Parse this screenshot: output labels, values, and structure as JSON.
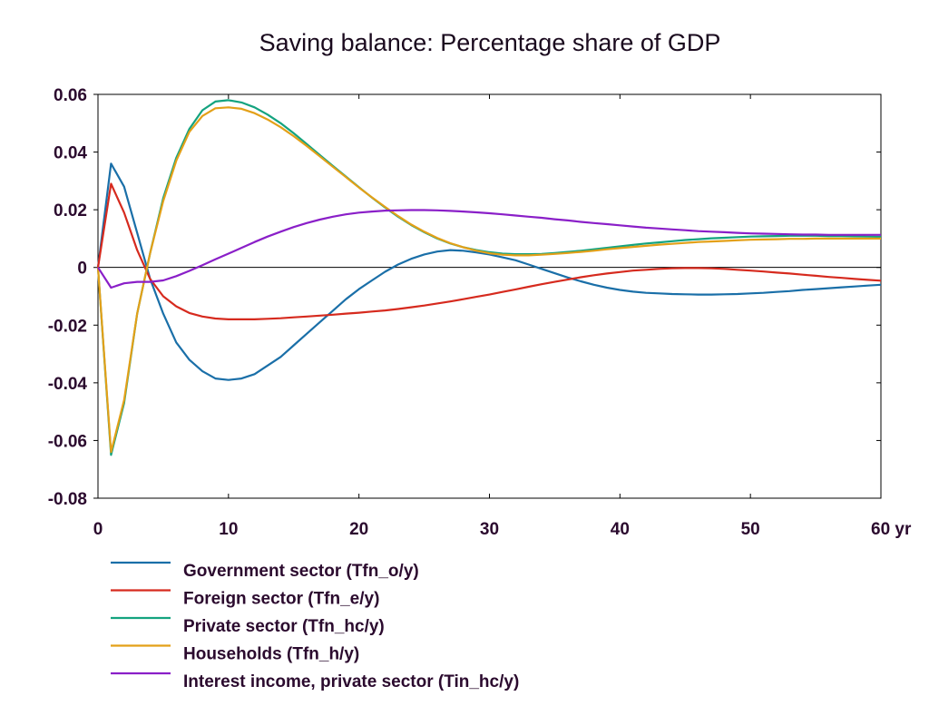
{
  "chart_data": {
    "type": "line",
    "title": "Saving balance: Percentage share of GDP",
    "xlabel": "",
    "ylabel": "",
    "xlim": [
      0,
      60
    ],
    "ylim": [
      -0.08,
      0.06
    ],
    "x_ticks": [
      0,
      10,
      20,
      30,
      40,
      50,
      60
    ],
    "x_tick_labels": [
      "0",
      "10",
      "20",
      "30",
      "40",
      "50",
      "60 yr"
    ],
    "y_ticks": [
      -0.08,
      -0.06,
      -0.04,
      -0.02,
      0,
      0.02,
      0.04,
      0.06
    ],
    "y_tick_labels": [
      "-0.08",
      "-0.06",
      "-0.04",
      "-0.02",
      "0",
      "0.02",
      "0.04",
      "0.06"
    ],
    "grid": false,
    "zero_line": true,
    "legend_position": "bottom",
    "x": [
      0,
      1,
      2,
      3,
      4,
      5,
      6,
      7,
      8,
      9,
      10,
      11,
      12,
      13,
      14,
      15,
      16,
      17,
      18,
      19,
      20,
      21,
      22,
      23,
      24,
      25,
      26,
      27,
      28,
      29,
      30,
      31,
      32,
      33,
      34,
      35,
      36,
      37,
      38,
      39,
      40,
      41,
      42,
      43,
      44,
      45,
      46,
      47,
      48,
      49,
      50,
      51,
      52,
      53,
      54,
      55,
      56,
      57,
      58,
      59,
      60
    ],
    "series": [
      {
        "name": "Government sector (Tfn_o/y)",
        "color": "#1a6fa8",
        "values": [
          0,
          0.036,
          0.028,
          0.012,
          -0.004,
          -0.016,
          -0.026,
          -0.032,
          -0.036,
          -0.0385,
          -0.039,
          -0.0385,
          -0.037,
          -0.034,
          -0.031,
          -0.027,
          -0.023,
          -0.019,
          -0.015,
          -0.011,
          -0.0075,
          -0.0045,
          -0.0015,
          0.001,
          0.003,
          0.0045,
          0.0055,
          0.006,
          0.0058,
          0.0052,
          0.0045,
          0.0035,
          0.0025,
          0.001,
          -0.0005,
          -0.002,
          -0.0035,
          -0.0048,
          -0.006,
          -0.007,
          -0.0078,
          -0.0084,
          -0.0088,
          -0.009,
          -0.0092,
          -0.0093,
          -0.0094,
          -0.0094,
          -0.0093,
          -0.0092,
          -0.009,
          -0.0088,
          -0.0085,
          -0.0082,
          -0.0078,
          -0.0075,
          -0.0072,
          -0.0069,
          -0.0066,
          -0.0063,
          -0.006
        ]
      },
      {
        "name": "Foreign sector (Tfn_e/y)",
        "color": "#d62a1e",
        "values": [
          0,
          0.029,
          0.019,
          0.006,
          -0.004,
          -0.01,
          -0.0135,
          -0.0158,
          -0.017,
          -0.0177,
          -0.018,
          -0.018,
          -0.018,
          -0.0178,
          -0.0176,
          -0.0173,
          -0.017,
          -0.0167,
          -0.0164,
          -0.016,
          -0.0157,
          -0.0153,
          -0.0149,
          -0.0144,
          -0.0138,
          -0.0132,
          -0.0125,
          -0.0118,
          -0.011,
          -0.0102,
          -0.0094,
          -0.0085,
          -0.0076,
          -0.0067,
          -0.0058,
          -0.005,
          -0.0042,
          -0.0034,
          -0.0027,
          -0.0021,
          -0.0016,
          -0.0011,
          -0.0008,
          -0.0005,
          -0.0003,
          -0.0002,
          -0.0002,
          -0.0003,
          -0.0005,
          -0.0008,
          -0.0011,
          -0.0014,
          -0.0018,
          -0.0021,
          -0.0025,
          -0.0029,
          -0.0033,
          -0.0036,
          -0.004,
          -0.0043,
          -0.0046
        ]
      },
      {
        "name": "Private sector (Tfn_hc/y)",
        "color": "#14a37f",
        "values": [
          0,
          -0.065,
          -0.047,
          -0.016,
          0.005,
          0.024,
          0.038,
          0.048,
          0.0545,
          0.0575,
          0.058,
          0.0572,
          0.0555,
          0.053,
          0.05,
          0.0465,
          0.0428,
          0.039,
          0.0352,
          0.0315,
          0.0278,
          0.0242,
          0.0208,
          0.0176,
          0.0147,
          0.0122,
          0.01,
          0.0083,
          0.007,
          0.006,
          0.0053,
          0.0048,
          0.0046,
          0.0046,
          0.0047,
          0.005,
          0.0054,
          0.0058,
          0.0063,
          0.0068,
          0.0073,
          0.0078,
          0.0083,
          0.0087,
          0.0091,
          0.0095,
          0.0098,
          0.0101,
          0.0103,
          0.0105,
          0.0107,
          0.0108,
          0.0109,
          0.011,
          0.011,
          0.011,
          0.0109,
          0.0109,
          0.0108,
          0.0107,
          0.0106
        ]
      },
      {
        "name": "Households (Tfn_h/y)",
        "color": "#e3a018",
        "values": [
          0,
          -0.064,
          -0.046,
          -0.016,
          0.005,
          0.023,
          0.037,
          0.047,
          0.0525,
          0.0552,
          0.0555,
          0.055,
          0.0535,
          0.0513,
          0.0486,
          0.0455,
          0.0421,
          0.0385,
          0.0349,
          0.0313,
          0.0277,
          0.0243,
          0.021,
          0.0178,
          0.0149,
          0.0124,
          0.0102,
          0.0084,
          0.007,
          0.0058,
          0.0049,
          0.0044,
          0.0042,
          0.0042,
          0.0044,
          0.0047,
          0.005,
          0.0054,
          0.0058,
          0.0063,
          0.0067,
          0.0071,
          0.0075,
          0.0079,
          0.0082,
          0.0085,
          0.0088,
          0.009,
          0.0092,
          0.0094,
          0.0096,
          0.0097,
          0.0098,
          0.0099,
          0.0099,
          0.01,
          0.01,
          0.01,
          0.01,
          0.01,
          0.01
        ]
      },
      {
        "name": "Interest income, private sector (Tin_hc/y)",
        "color": "#8a1fc8",
        "values": [
          0,
          -0.007,
          -0.0055,
          -0.005,
          -0.005,
          -0.0045,
          -0.003,
          -0.0012,
          0.0008,
          0.0028,
          0.0048,
          0.0068,
          0.0088,
          0.0107,
          0.0124,
          0.014,
          0.0154,
          0.0166,
          0.0176,
          0.0184,
          0.019,
          0.0194,
          0.0197,
          0.0198,
          0.0199,
          0.0199,
          0.0198,
          0.0196,
          0.0194,
          0.0191,
          0.0188,
          0.0184,
          0.018,
          0.0176,
          0.0172,
          0.0167,
          0.0163,
          0.0158,
          0.0154,
          0.015,
          0.0146,
          0.0142,
          0.0138,
          0.0135,
          0.0132,
          0.0129,
          0.0126,
          0.0124,
          0.0122,
          0.012,
          0.0118,
          0.0117,
          0.0116,
          0.0115,
          0.0114,
          0.0114,
          0.0113,
          0.0113,
          0.0113,
          0.0113,
          0.0113
        ]
      }
    ]
  }
}
